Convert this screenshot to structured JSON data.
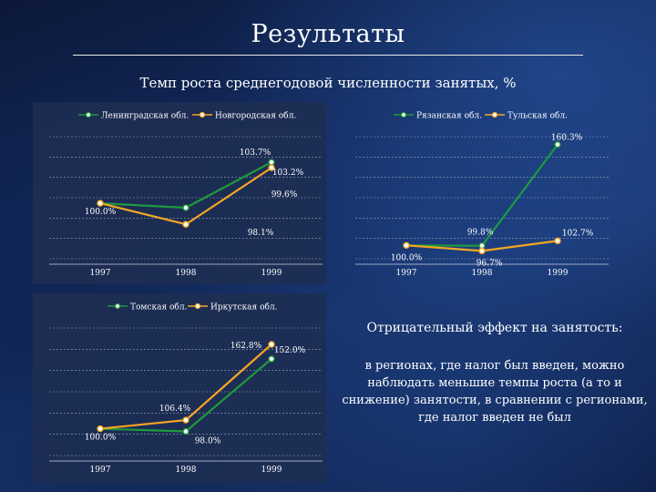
{
  "slide": {
    "title": "Результаты",
    "subtitle": "Темп роста среднегодовой численности занятых, %",
    "note_heading": "Отрицательный эффект на занятость:",
    "note_body": "в регионах, где налог был введен, можно наблюдать меньшие темпы роста (а то и снижение) занятости, в сравнении с регионами, где налог введен не был"
  },
  "colors": {
    "green": "#1e9a3c",
    "orange": "#f5a623",
    "grid": "#9aa4b8",
    "panel": "#1f2e52"
  },
  "chart_data": [
    {
      "type": "line",
      "categories": [
        "1997",
        "1998",
        "1999"
      ],
      "ylim": [
        95,
        106
      ],
      "series": [
        {
          "name": "Ленинградская обл.",
          "color": "#1e9a3c",
          "values": [
            100.0,
            99.6,
            103.7
          ],
          "labels": [
            "100.0%",
            "99.6%",
            "103.7%"
          ]
        },
        {
          "name": "Новгородская обл.",
          "color": "#f5a623",
          "values": [
            100.0,
            98.1,
            103.2
          ],
          "labels": [
            "",
            "98.1%",
            "103.2%"
          ]
        }
      ]
    },
    {
      "type": "line",
      "categories": [
        "1997",
        "1998",
        "1999"
      ],
      "ylim": [
        92,
        165
      ],
      "series": [
        {
          "name": "Рязанская обл.",
          "color": "#1e9a3c",
          "values": [
            100.0,
            99.8,
            160.3
          ],
          "labels": [
            "100.0%",
            "99.8%",
            "160.3%"
          ]
        },
        {
          "name": "Тульская обл.",
          "color": "#f5a623",
          "values": [
            100.0,
            96.7,
            102.7
          ],
          "labels": [
            "",
            "96.7%",
            "102.7%"
          ]
        }
      ]
    },
    {
      "type": "line",
      "categories": [
        "1997",
        "1998",
        "1999"
      ],
      "ylim": [
        80,
        175
      ],
      "series": [
        {
          "name": "Томская обл.",
          "color": "#1e9a3c",
          "values": [
            100.0,
            98.0,
            152.0
          ],
          "labels": [
            "100.0%",
            "98.0%",
            "152.0%"
          ]
        },
        {
          "name": "Иркутская обл.",
          "color": "#f5a623",
          "values": [
            100.0,
            106.4,
            162.8
          ],
          "labels": [
            "",
            "106.4%",
            "162.8%"
          ]
        }
      ]
    }
  ]
}
